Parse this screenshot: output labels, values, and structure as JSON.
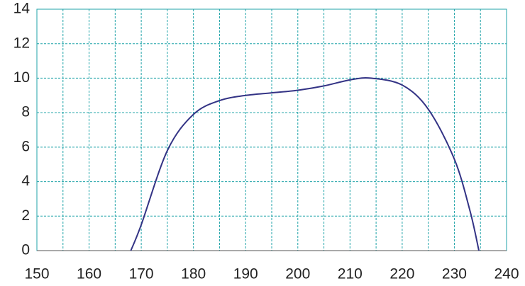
{
  "chart_data": {
    "type": "line",
    "x": [
      168,
      170,
      175,
      180,
      185,
      190,
      195,
      200,
      205,
      210,
      214,
      220,
      225,
      230,
      233,
      234.7
    ],
    "series": [
      {
        "color": "#333385",
        "values": [
          0,
          1.5,
          5.8,
          7.9,
          8.7,
          9.0,
          9.15,
          9.3,
          9.55,
          9.9,
          10.0,
          9.6,
          8.2,
          5.3,
          2.3,
          0
        ]
      }
    ],
    "xlim": [
      150,
      240
    ],
    "xticks": [
      150,
      160,
      170,
      180,
      190,
      200,
      210,
      220,
      230,
      240
    ],
    "xgrid": [
      150,
      155,
      160,
      165,
      170,
      175,
      180,
      185,
      190,
      195,
      200,
      205,
      210,
      215,
      220,
      225,
      230,
      235,
      240
    ],
    "ylim": [
      0,
      14
    ],
    "yticks": [
      0,
      2,
      4,
      6,
      8,
      10,
      12,
      14
    ],
    "grid": true,
    "grid_color": "#1fa3a8"
  }
}
